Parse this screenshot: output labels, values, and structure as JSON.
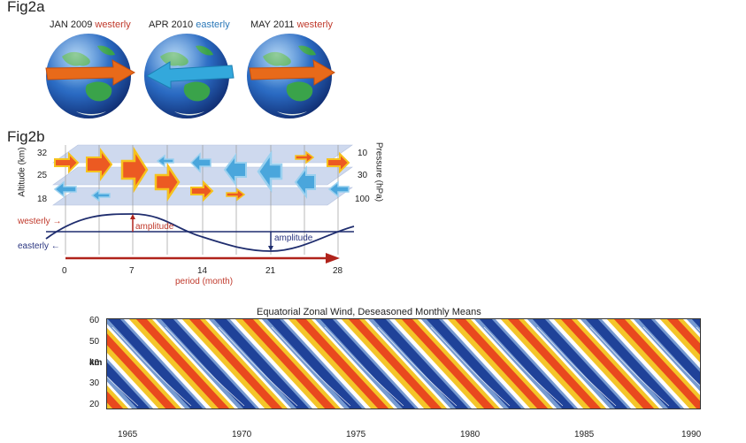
{
  "fig2a": {
    "label": "Fig2a",
    "globes": [
      {
        "date": "JAN 2009",
        "regime": "westerly",
        "regime_color": "#c0392b",
        "arrow": "east",
        "arrow_color": "#e86a1a"
      },
      {
        "date": "APR 2010",
        "regime": "easterly",
        "regime_color": "#2b78b8",
        "arrow": "west",
        "arrow_color": "#33a8dc"
      },
      {
        "date": "MAY 2011",
        "regime": "westerly",
        "regime_color": "#c0392b",
        "arrow": "east",
        "arrow_color": "#e86a1a"
      }
    ]
  },
  "fig2b": {
    "label": "Fig2b",
    "altitude_label": "Altitude (km)",
    "altitude_ticks": [
      "32",
      "25",
      "18"
    ],
    "pressure_label": "Pressure (hPa)",
    "pressure_ticks": [
      "10",
      "30",
      "100"
    ],
    "westerly_label": "westerly →",
    "easterly_label": "easterly ←",
    "amplitude_label": "amplitude",
    "x_ticks": [
      "0",
      "7",
      "14",
      "21",
      "28"
    ],
    "period_label": "period (month)"
  },
  "chart_data": {
    "type": "heatmap",
    "title": "Equatorial Zonal Wind, Deseasoned Monthly Means",
    "ylabel": "km",
    "y_ticks": [
      20,
      30,
      40,
      50,
      60
    ],
    "x_ticks": [
      1965,
      1970,
      1975,
      1980,
      1985,
      1990
    ],
    "xlim": [
      1964,
      1990
    ],
    "ylim": [
      18,
      60
    ],
    "colors": {
      "strong_easterly": "#1a3d96",
      "easterly": "#6f95cf",
      "neutral": "#ffffff",
      "westerly": "#f3c21e",
      "strong_westerly": "#e8421d"
    }
  }
}
